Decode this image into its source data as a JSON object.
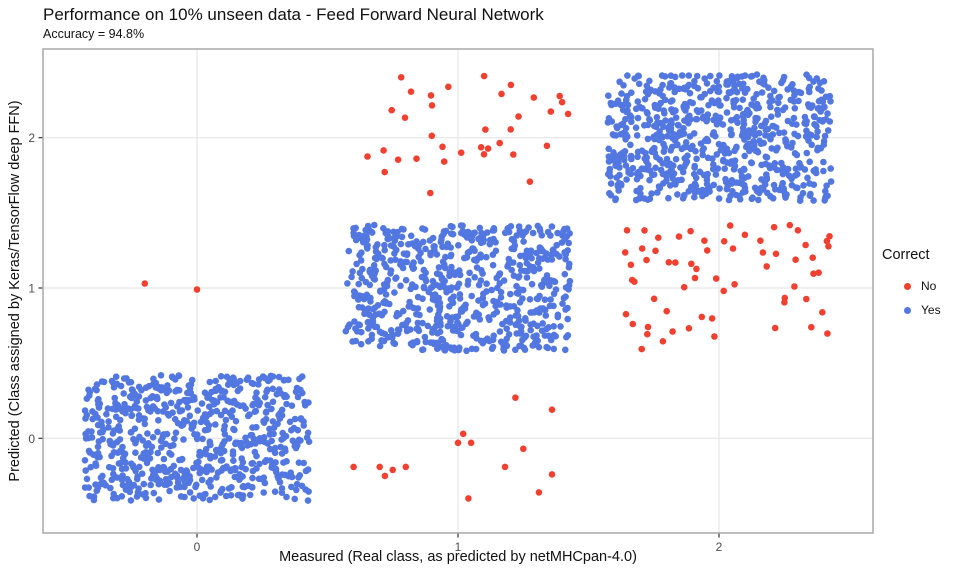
{
  "chart_data": {
    "type": "scatter",
    "title": "Performance on 10% unseen data - Feed Forward Neural Network",
    "subtitle": "Accuracy = 94.8%",
    "xlabel": "Measured (Real class, as predicted by netMHCpan-4.0)",
    "ylabel": "Predicted (Class assigned by Keras/TensorFlow deep FFN)",
    "x_ticks": [
      0,
      1,
      2
    ],
    "y_ticks": [
      0,
      1,
      2
    ],
    "xlim": [
      -0.59,
      2.59
    ],
    "ylim": [
      -0.63,
      2.59
    ],
    "grid": "major",
    "legend": {
      "title": "Correct",
      "position": "right",
      "items": [
        {
          "label": "No",
          "color": "#F14030"
        },
        {
          "label": "Yes",
          "color": "#5277E0"
        }
      ]
    },
    "point_radius_px": 3.3,
    "jitter": {
      "x_spread": 0.43,
      "y_spread": 0.42
    },
    "clusters": [
      {
        "measured": 0,
        "predicted": 0,
        "correct": "Yes",
        "count": 690
      },
      {
        "measured": 1,
        "predicted": 1,
        "correct": "Yes",
        "count": 690
      },
      {
        "measured": 2,
        "predicted": 2,
        "correct": "Yes",
        "count": 720
      },
      {
        "measured": 1,
        "predicted": 2,
        "correct": "No",
        "count": 35
      },
      {
        "measured": 2,
        "predicted": 1,
        "correct": "No",
        "count": 63
      }
    ],
    "sparse_points": [
      {
        "measured": 0,
        "predicted": 1,
        "correct": "No",
        "points": [
          [
            -0.2,
            1.03
          ],
          [
            0.0,
            0.99
          ]
        ]
      },
      {
        "measured": 1,
        "predicted": 0,
        "correct": "No",
        "points": [
          [
            0.6,
            -0.19
          ],
          [
            0.7,
            -0.19
          ],
          [
            0.72,
            -0.25
          ],
          [
            0.75,
            -0.21
          ],
          [
            0.8,
            -0.19
          ],
          [
            1.0,
            -0.03
          ],
          [
            1.02,
            0.03
          ],
          [
            1.05,
            -0.03
          ],
          [
            1.04,
            -0.4
          ],
          [
            1.18,
            -0.19
          ],
          [
            1.22,
            0.27
          ],
          [
            1.25,
            -0.07
          ],
          [
            1.31,
            -0.36
          ],
          [
            1.36,
            0.19
          ],
          [
            1.36,
            -0.24
          ]
        ]
      }
    ],
    "theme": {
      "grid_color": "#E6E6E6",
      "panel_border_color": "#A9A9A9",
      "tick_color": "#333333",
      "tick_label_color": "#4D4D4D",
      "background": "#FFFFFF"
    }
  }
}
